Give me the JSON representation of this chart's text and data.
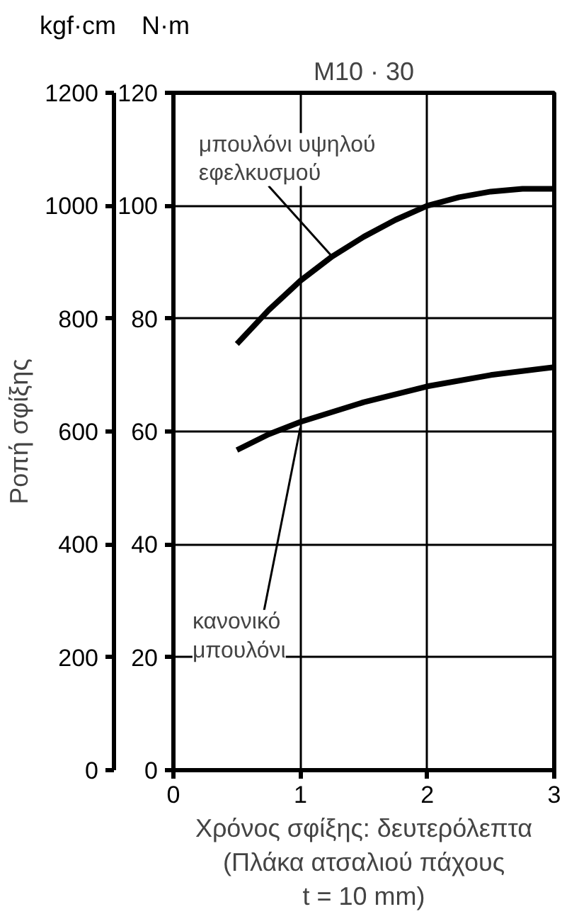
{
  "chart_data": {
    "type": "line",
    "title": "M10 · 30",
    "xlabel": "Χρόνος σφίξης: δευτερόλεπτα\n(Πλάκα ατσαλιού πάχους\nt = 10 mm)",
    "ylabel": "Ροπή σφίξης",
    "annotations": [
      "kgf·cm",
      "N·m"
    ],
    "xlim": [
      0,
      3
    ],
    "xticks": [
      0,
      1,
      2,
      3
    ],
    "ylim": [
      0,
      1200
    ],
    "yticks": [
      0,
      200,
      400,
      600,
      800,
      1000,
      1200
    ],
    "y2lim": [
      0,
      120
    ],
    "y2ticks": [
      0,
      20,
      40,
      60,
      80,
      100,
      120
    ],
    "grid": true,
    "series": [
      {
        "name": "μπουλόνι υψηλού\nεφελκυσμού",
        "color": "#000000",
        "axis": "y2",
        "x": [
          0.5,
          0.75,
          1,
          1.25,
          1.5,
          1.75,
          2,
          2.25,
          2.5,
          2.75,
          3
        ],
        "values": [
          75.5,
          81.5,
          86.7,
          91,
          94.5,
          97.5,
          100,
          101.5,
          102.5,
          103,
          103
        ]
      },
      {
        "name": "κανονικό\nμπουλόνι",
        "color": "#000000",
        "axis": "y2",
        "x": [
          0.5,
          0.75,
          1,
          1.5,
          2,
          2.5,
          3
        ],
        "values": [
          56.7,
          59.5,
          61.7,
          65.2,
          68,
          70,
          71.4
        ]
      }
    ]
  }
}
